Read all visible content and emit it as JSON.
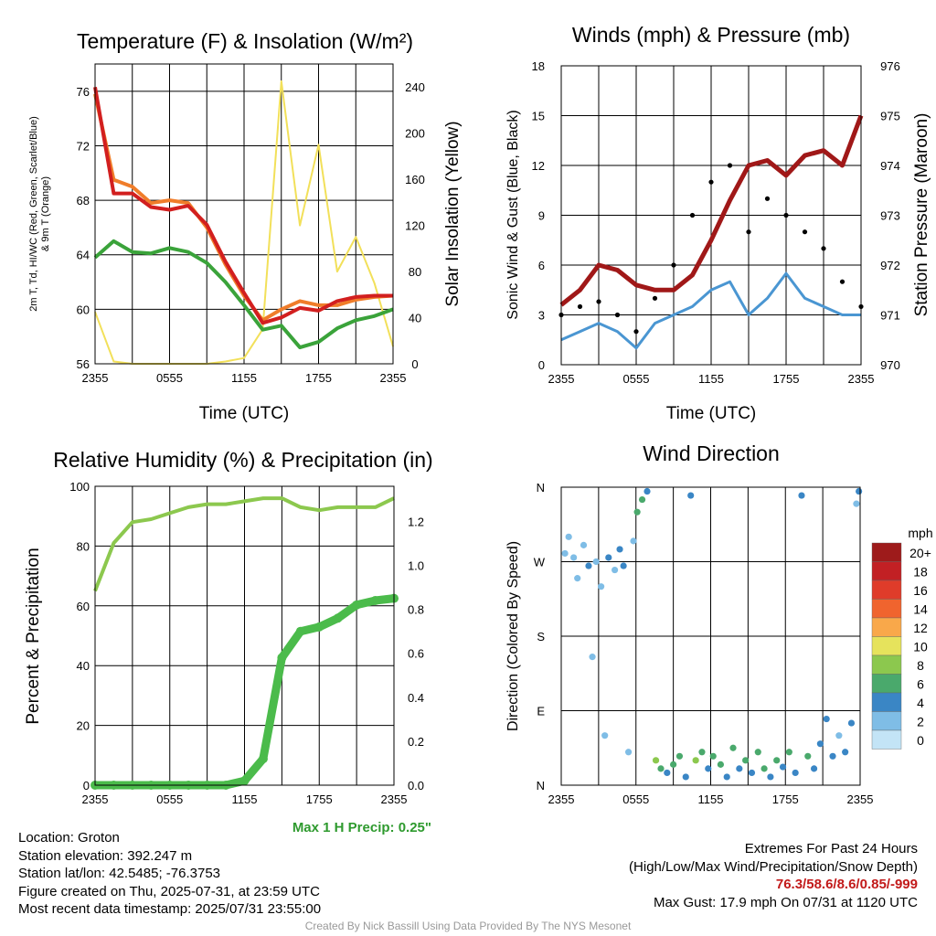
{
  "colors": {
    "temp": "#d21f1f",
    "dewpoint": "#3aa33a",
    "temp9m": "#f07d2a",
    "insolation": "#f2e05a",
    "wind": "#4a96d2",
    "gust": "#000000",
    "pressure": "#a01818",
    "rh": "#8cc84e",
    "precip": "#4bbb4b",
    "max_precip_label": "#2e9a2e",
    "extremes": "#c21a1a",
    "credit": "#999999"
  },
  "panels": {
    "temperature": {
      "title": "Temperature (F) & Insolation (W/m²)",
      "xlabel": "Time (UTC)",
      "ylabel_left_1": "2m T, Td, HI/WC (Red, Green, Scarlet/Blue)",
      "ylabel_left_2": "& 9m T (Orange)",
      "ylabel_right": "Solar Insolation (Yellow)"
    },
    "winds": {
      "title": "Winds (mph) & Pressure (mb)",
      "xlabel": "Time (UTC)",
      "ylabel_left": "Sonic Wind & Gust (Blue, Black)",
      "ylabel_right": "Station Pressure (Maroon)"
    },
    "humidity": {
      "title": "Relative Humidity (%) & Precipitation (in)",
      "ylabel_left": "Percent & Precipitation",
      "annotation": "Max 1 H Precip: 0.25\""
    },
    "direction": {
      "title": "Wind Direction",
      "ylabel_left": "Direction (Colored By Speed)",
      "legend_title": "mph",
      "legend_labels": [
        "20+",
        "18",
        "16",
        "14",
        "12",
        "10",
        "8",
        "6",
        "4",
        "2",
        "0"
      ],
      "legend_colors": [
        "#9e1b1b",
        "#c22024",
        "#df3c2a",
        "#f0642e",
        "#f9a84a",
        "#e6e35c",
        "#8cc84e",
        "#4aa96c",
        "#3a86c5",
        "#7fbde6",
        "#c3e4f6"
      ]
    }
  },
  "info": {
    "location": "Location: Groton",
    "elevation": "Station elevation: 392.247 m",
    "latlon": "Station lat/lon: 42.5485; -76.3753",
    "created": "Figure created on Thu, 2025-07-31, at 23:59 UTC",
    "recent": "Most recent data timestamp: 2025/07/31 23:55:00",
    "extremes_title": "Extremes For Past 24 Hours",
    "extremes_subtitle": "(High/Low/Max Wind/Precipitation/Snow Depth)",
    "extremes_values": "76.3/58.6/8.6/0.85/-999",
    "max_gust": "Max Gust: 17.9 mph On 07/31 at 1120 UTC",
    "credit": "Created By Nick Bassill Using Data Provided By The NYS Mesonet"
  },
  "chart_data": [
    {
      "type": "line",
      "title": "Temperature (F) & Insolation (W/m²)",
      "xlabel": "Time (UTC)",
      "ylabel": "2m T, Td, HI/WC (Red, Green, Scarlet/Blue) & 9m T (Orange)",
      "y2label": "Solar Insolation (Yellow)",
      "x_ticks": [
        "2355",
        "0555",
        "1155",
        "1755",
        "2355"
      ],
      "x_hours": [
        0,
        1.5,
        3,
        4.5,
        6,
        7.5,
        9,
        10.5,
        12,
        13.5,
        15,
        16.5,
        18,
        19.5,
        21,
        22.5,
        24
      ],
      "ylim": [
        56,
        78
      ],
      "y_ticks": [
        56,
        60,
        64,
        68,
        72,
        76
      ],
      "y2lim": [
        0,
        260
      ],
      "y2_ticks": [
        0,
        40,
        80,
        120,
        160,
        200,
        240
      ],
      "series": [
        {
          "name": "2m T (Red)",
          "values": [
            76.3,
            68.5,
            68.5,
            67.5,
            67.3,
            67.6,
            66.2,
            63.5,
            61.2,
            59.0,
            59.4,
            60.1,
            59.9,
            60.6,
            60.9,
            61.0,
            61.0
          ]
        },
        {
          "name": "9m T (Orange)",
          "values": [
            75.8,
            69.5,
            69.0,
            67.8,
            68.0,
            67.8,
            66.0,
            63.3,
            61.0,
            59.2,
            60.0,
            60.6,
            60.3,
            60.3,
            60.7,
            60.9,
            61.0
          ]
        },
        {
          "name": "Td (Green)",
          "values": [
            63.8,
            65.0,
            64.2,
            64.1,
            64.5,
            64.2,
            63.4,
            62.0,
            60.3,
            58.5,
            58.8,
            57.2,
            57.6,
            58.6,
            59.2,
            59.5,
            60.0
          ]
        },
        {
          "name": "Solar Insolation (Yellow)",
          "axis": "right",
          "values": [
            45,
            2,
            0,
            0,
            0,
            0,
            0,
            2,
            5,
            30,
            245,
            120,
            190,
            80,
            110,
            70,
            15
          ]
        }
      ]
    },
    {
      "type": "line",
      "title": "Winds (mph) & Pressure (mb)",
      "xlabel": "Time (UTC)",
      "ylabel": "Sonic Wind & Gust (Blue, Black)",
      "y2label": "Station Pressure (Maroon)",
      "x_ticks": [
        "2355",
        "0555",
        "1155",
        "1755",
        "2355"
      ],
      "x_hours": [
        0,
        1.5,
        3,
        4.5,
        6,
        7.5,
        9,
        10.5,
        12,
        13.5,
        15,
        16.5,
        18,
        19.5,
        21,
        22.5,
        24
      ],
      "ylim": [
        0,
        18
      ],
      "y_ticks": [
        0,
        3,
        6,
        9,
        12,
        15,
        18
      ],
      "y2lim": [
        970,
        976
      ],
      "y2_ticks": [
        970,
        971,
        972,
        973,
        974,
        975,
        976
      ],
      "series": [
        {
          "name": "Sonic Wind (Blue)",
          "values": [
            1.5,
            2.0,
            2.5,
            2.0,
            1.0,
            2.5,
            3.0,
            3.5,
            4.5,
            5.0,
            3.0,
            4.0,
            5.5,
            4.0,
            3.5,
            3.0,
            3.0
          ]
        },
        {
          "name": "Gust (Black)",
          "values": [
            3.0,
            3.5,
            3.8,
            3.0,
            2.0,
            4.0,
            6.0,
            9.0,
            11.0,
            12.0,
            8.0,
            10.0,
            9.0,
            8.0,
            7.0,
            5.0,
            3.5
          ]
        },
        {
          "name": "Station Pressure (Maroon)",
          "axis": "right",
          "values": [
            971.2,
            971.5,
            972.0,
            971.9,
            971.6,
            971.5,
            971.5,
            971.8,
            972.5,
            973.3,
            974.0,
            974.1,
            973.8,
            974.2,
            974.3,
            974.0,
            975.0
          ]
        }
      ]
    },
    {
      "type": "line",
      "title": "Relative Humidity (%) & Precipitation (in)",
      "ylabel": "Percent & Precipitation",
      "x_ticks": [
        "2355",
        "0555",
        "1155",
        "1755",
        "2355"
      ],
      "x_hours": [
        0,
        1.5,
        3,
        4.5,
        6,
        7.5,
        9,
        10.5,
        12,
        13.5,
        15,
        16.5,
        18,
        19.5,
        21,
        22.5,
        24
      ],
      "ylim": [
        0,
        100
      ],
      "y_ticks": [
        0,
        20,
        40,
        60,
        80,
        100
      ],
      "y2lim": [
        0,
        1.36
      ],
      "y2_ticks": [
        0.0,
        0.2,
        0.4,
        0.6,
        0.8,
        1.0,
        1.2
      ],
      "annotation": "Max 1 H Precip: 0.25\"",
      "series": [
        {
          "name": "Relative Humidity",
          "values": [
            65,
            81,
            88,
            89,
            91,
            93,
            94,
            94,
            95,
            96,
            96,
            93,
            92,
            93,
            93,
            93,
            96
          ]
        },
        {
          "name": "Precipitation",
          "axis": "right",
          "values": [
            0,
            0,
            0,
            0,
            0,
            0,
            0,
            0,
            0.02,
            0.12,
            0.58,
            0.7,
            0.72,
            0.76,
            0.82,
            0.84,
            0.85
          ]
        }
      ]
    },
    {
      "type": "scatter",
      "title": "Wind Direction",
      "ylabel": "Direction (Colored By Speed)",
      "x_ticks": [
        "2355",
        "0555",
        "1155",
        "1755",
        "2355"
      ],
      "y_ticks": [
        "N",
        "E",
        "S",
        "W",
        "N"
      ],
      "ylim": [
        0,
        360
      ],
      "legend_title": "mph",
      "points": [
        {
          "x": 0.3,
          "y": 280,
          "speed": 1
        },
        {
          "x": 0.6,
          "y": 300,
          "speed": 1
        },
        {
          "x": 1.0,
          "y": 275,
          "speed": 2
        },
        {
          "x": 1.3,
          "y": 250,
          "speed": 2
        },
        {
          "x": 1.8,
          "y": 290,
          "speed": 1
        },
        {
          "x": 2.2,
          "y": 265,
          "speed": 3
        },
        {
          "x": 2.5,
          "y": 155,
          "speed": 1
        },
        {
          "x": 2.8,
          "y": 270,
          "speed": 2
        },
        {
          "x": 3.2,
          "y": 240,
          "speed": 2
        },
        {
          "x": 3.5,
          "y": 60,
          "speed": 1
        },
        {
          "x": 3.8,
          "y": 275,
          "speed": 3
        },
        {
          "x": 4.3,
          "y": 260,
          "speed": 2
        },
        {
          "x": 4.7,
          "y": 285,
          "speed": 3
        },
        {
          "x": 5.0,
          "y": 265,
          "speed": 3
        },
        {
          "x": 5.4,
          "y": 40,
          "speed": 1
        },
        {
          "x": 5.8,
          "y": 295,
          "speed": 2
        },
        {
          "x": 6.1,
          "y": 330,
          "speed": 5
        },
        {
          "x": 6.5,
          "y": 345,
          "speed": 6
        },
        {
          "x": 6.9,
          "y": 355,
          "speed": 4
        },
        {
          "x": 7.6,
          "y": 30,
          "speed": 7
        },
        {
          "x": 8.0,
          "y": 20,
          "speed": 5
        },
        {
          "x": 8.5,
          "y": 15,
          "speed": 4
        },
        {
          "x": 9.0,
          "y": 25,
          "speed": 6
        },
        {
          "x": 9.5,
          "y": 35,
          "speed": 5
        },
        {
          "x": 10.0,
          "y": 10,
          "speed": 4
        },
        {
          "x": 10.4,
          "y": 350,
          "speed": 4
        },
        {
          "x": 10.8,
          "y": 30,
          "speed": 7
        },
        {
          "x": 11.3,
          "y": 40,
          "speed": 5
        },
        {
          "x": 11.8,
          "y": 20,
          "speed": 4
        },
        {
          "x": 12.2,
          "y": 35,
          "speed": 6
        },
        {
          "x": 12.8,
          "y": 25,
          "speed": 5
        },
        {
          "x": 13.3,
          "y": 10,
          "speed": 4
        },
        {
          "x": 13.8,
          "y": 45,
          "speed": 6
        },
        {
          "x": 14.3,
          "y": 20,
          "speed": 4
        },
        {
          "x": 14.8,
          "y": 30,
          "speed": 5
        },
        {
          "x": 15.3,
          "y": 15,
          "speed": 4
        },
        {
          "x": 15.8,
          "y": 40,
          "speed": 6
        },
        {
          "x": 16.3,
          "y": 20,
          "speed": 5
        },
        {
          "x": 16.8,
          "y": 10,
          "speed": 4
        },
        {
          "x": 17.3,
          "y": 30,
          "speed": 5
        },
        {
          "x": 17.8,
          "y": 22,
          "speed": 4
        },
        {
          "x": 18.3,
          "y": 40,
          "speed": 5
        },
        {
          "x": 18.8,
          "y": 15,
          "speed": 4
        },
        {
          "x": 19.3,
          "y": 350,
          "speed": 4
        },
        {
          "x": 19.8,
          "y": 35,
          "speed": 5
        },
        {
          "x": 20.3,
          "y": 20,
          "speed": 4
        },
        {
          "x": 20.8,
          "y": 50,
          "speed": 3
        },
        {
          "x": 21.3,
          "y": 80,
          "speed": 4
        },
        {
          "x": 21.8,
          "y": 35,
          "speed": 3
        },
        {
          "x": 22.3,
          "y": 60,
          "speed": 2
        },
        {
          "x": 22.8,
          "y": 40,
          "speed": 4
        },
        {
          "x": 23.3,
          "y": 75,
          "speed": 3
        },
        {
          "x": 23.7,
          "y": 340,
          "speed": 2
        },
        {
          "x": 23.9,
          "y": 355,
          "speed": 4
        }
      ]
    }
  ]
}
